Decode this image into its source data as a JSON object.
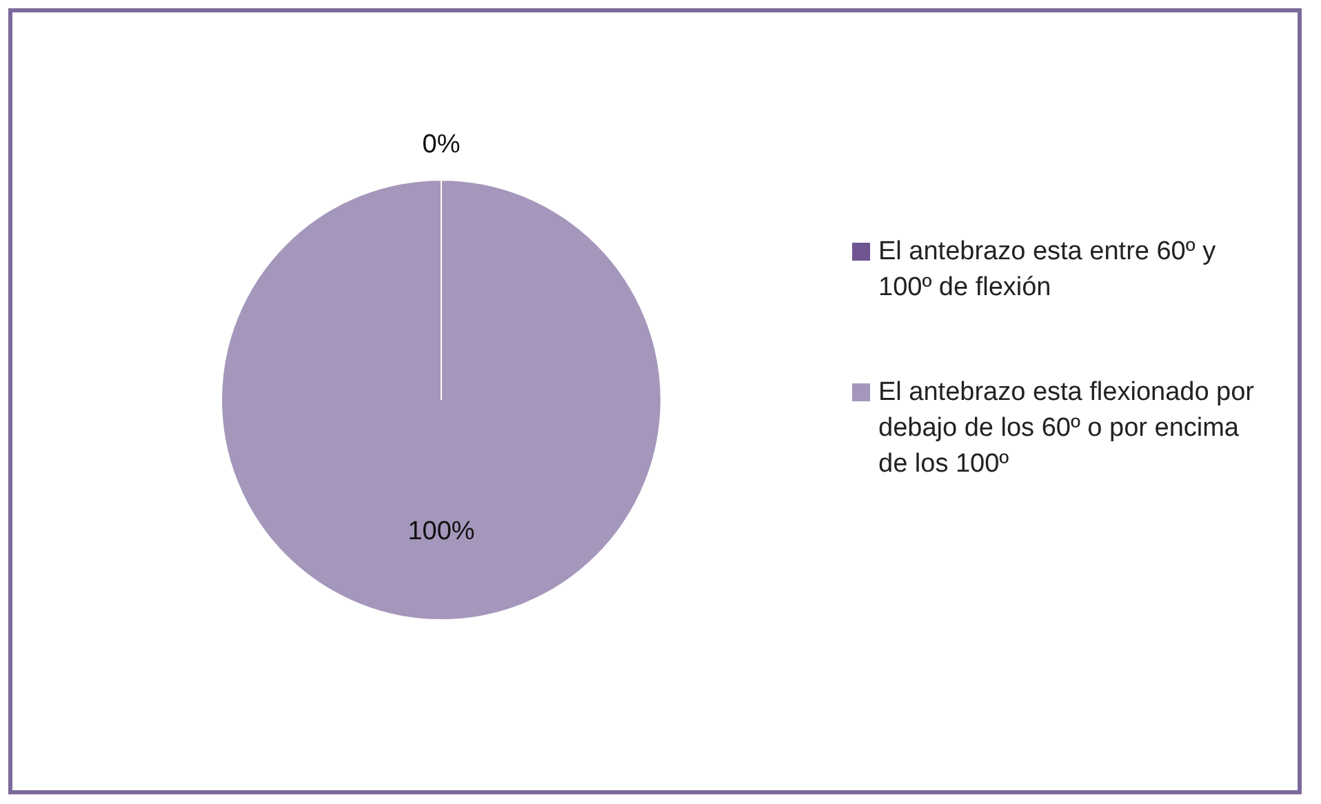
{
  "chart_data": {
    "type": "pie",
    "categories": [
      "El antebrazo esta entre 60º  y 100º de flexión",
      "El antebrazo esta flexionado por debajo de los 60º o por encima de los 100º"
    ],
    "values": [
      0,
      100
    ],
    "colors": [
      "#6f5592",
      "#a597bb"
    ],
    "value_labels": [
      "0%",
      "100%"
    ],
    "legend": "right"
  }
}
